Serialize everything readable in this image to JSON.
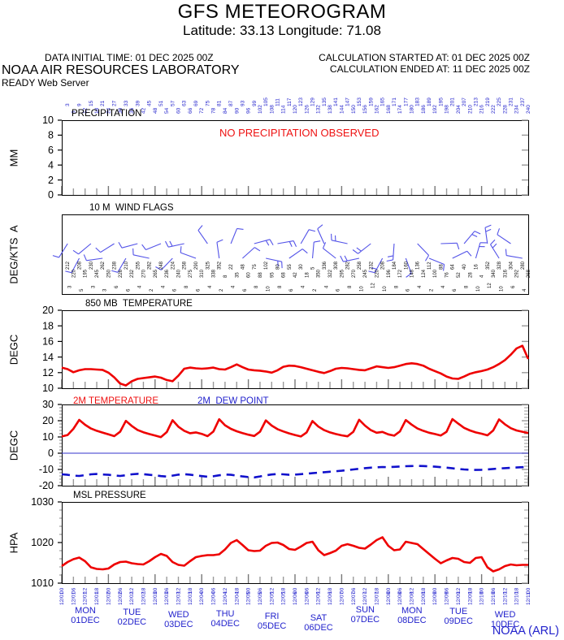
{
  "header": {
    "title": "GFS METEOROGRAM",
    "subtitle": "Latitude: 33.13 Longitude:  71.08",
    "data_initial_time": "DATA INITIAL TIME: 01 DEC 2025 00Z",
    "calc_started": "CALCULATION STARTED AT: 01 DEC 2025 00Z",
    "calc_ended": "CALCULATION ENDED AT: 11 DEC 2025 00Z",
    "org": "NOAA AIR RESOURCES LABORATORY",
    "server": "READY Web Server"
  },
  "footer": {
    "credit": "NOAA (ARL)"
  },
  "colors": {
    "line_red": "#ee0000",
    "text_red": "#ee1111",
    "blue_text": "#2222cc",
    "dew_blue": "#1111cc",
    "barb_blue": "#5353e8",
    "axis_black": "#000000",
    "tick_gray": "#9a9a9a",
    "day_tick_gray": "#777777"
  },
  "x_axis": {
    "x_unit": "forecast hours since 01 DEC 2025 00Z",
    "hours_top": [
      3,
      6,
      9,
      12,
      15,
      18,
      21,
      24,
      27,
      30,
      33,
      36,
      39,
      42,
      45,
      48,
      51,
      54,
      57,
      60,
      63,
      66,
      69,
      72,
      75,
      78,
      81,
      84,
      87,
      90,
      93,
      96,
      99,
      102,
      105,
      108,
      111,
      114,
      117,
      120,
      123,
      126,
      129,
      132,
      135,
      138,
      141,
      144,
      147,
      150,
      153,
      156,
      159,
      162,
      165,
      168,
      171,
      174,
      177,
      180,
      183,
      186,
      189,
      192,
      195,
      198,
      201,
      204,
      207,
      210,
      213,
      216,
      219,
      222,
      225,
      228,
      231,
      234,
      237,
      240
    ],
    "bottom_hours": [
      "00",
      "06",
      "12",
      "18",
      "00",
      "06",
      "12",
      "18",
      "00",
      "06",
      "12",
      "18",
      "00",
      "06",
      "12",
      "18",
      "00",
      "06",
      "12",
      "18",
      "00",
      "06",
      "12",
      "18",
      "00",
      "06",
      "12",
      "18",
      "00",
      "06",
      "12",
      "18",
      "00",
      "06",
      "12",
      "18",
      "00",
      "06",
      "12",
      "18",
      "00"
    ],
    "bottom_dates": [
      "12/01",
      "12/01",
      "12/01",
      "12/01",
      "12/02",
      "12/02",
      "12/02",
      "12/02",
      "12/03",
      "12/03",
      "12/03",
      "12/03",
      "12/04",
      "12/04",
      "12/04",
      "12/04",
      "12/05",
      "12/05",
      "12/05",
      "12/05",
      "12/06",
      "12/06",
      "12/06",
      "12/06",
      "12/07",
      "12/07",
      "12/07",
      "12/07",
      "12/08",
      "12/08",
      "12/08",
      "12/08",
      "12/09",
      "12/09",
      "12/09",
      "12/09",
      "12/10",
      "12/10",
      "12/10",
      "12/10",
      "12/11"
    ],
    "days": [
      {
        "name": "MON",
        "date": "01DEC",
        "dy": 1
      },
      {
        "name": "TUE",
        "date": "02DEC",
        "dy": 3
      },
      {
        "name": "WED",
        "date": "03DEC",
        "dy": 6
      },
      {
        "name": "THU",
        "date": "04DEC",
        "dy": 5
      },
      {
        "name": "FRI",
        "date": "05DEC",
        "dy": 8
      },
      {
        "name": "SAT",
        "date": "06DEC",
        "dy": 10
      },
      {
        "name": "SUN",
        "date": "07DEC",
        "dy": 0
      },
      {
        "name": "MON",
        "date": "08DEC",
        "dy": 1
      },
      {
        "name": "TUE",
        "date": "09DEC",
        "dy": 2
      },
      {
        "name": "WED",
        "date": "10DEC",
        "dy": 6
      }
    ]
  },
  "chart_data": [
    {
      "type": "line",
      "title": "PRECIPITATION",
      "ylabel": "MM",
      "ylim": [
        0,
        10
      ],
      "yticks": [
        0,
        2,
        4,
        6,
        8,
        10
      ],
      "x_start_hour": 0,
      "x_end_hour": 240,
      "x_step_hours": 3,
      "annotation": "NO PRECIPITATION OBSERVED",
      "series": []
    },
    {
      "type": "wind-barbs",
      "title": "10 M  WIND FLAGS",
      "ylabel": "DEG/KTS  A",
      "x_start_hour": 0,
      "x_end_hour": 240,
      "x_step_hours": 3,
      "wind_dir": [
        212,
        220,
        208,
        195,
        230,
        245,
        262,
        250,
        238,
        226,
        210,
        232,
        255,
        270,
        282,
        265,
        248,
        236,
        224,
        240,
        258,
        275,
        290,
        310,
        325,
        338,
        352,
        8,
        22,
        35,
        48,
        60,
        75,
        88,
        102,
        95,
        80,
        68,
        55,
        42,
        30,
        18,
        5,
        350,
        336,
        322,
        308,
        295,
        282,
        270,
        258,
        245,
        232,
        220,
        208,
        196,
        184,
        172,
        160,
        148,
        136,
        124,
        112,
        100,
        88,
        76,
        64,
        52,
        40,
        28,
        16,
        4,
        352,
        340,
        328,
        316,
        304,
        292,
        280,
        268
      ],
      "wind_spd": [
        3,
        4,
        5,
        4,
        3,
        2,
        3,
        5,
        6,
        7,
        6,
        5,
        4,
        3,
        2,
        3,
        4,
        5,
        6,
        7,
        8,
        7,
        6,
        5,
        4,
        3,
        2,
        3,
        4,
        5,
        6,
        7,
        8,
        9,
        10,
        9,
        8,
        7,
        6,
        5,
        4,
        3,
        2,
        3,
        4,
        5,
        6,
        7,
        8,
        9,
        10,
        11,
        12,
        11,
        10,
        9,
        8,
        7,
        6,
        5,
        4,
        3,
        2,
        3,
        4,
        5,
        6,
        7,
        8,
        9,
        10,
        11,
        12,
        11,
        10,
        8,
        6,
        5,
        4,
        3
      ]
    },
    {
      "type": "line",
      "title": "850 MB  TEMPERATURE",
      "ylabel": "DEGC",
      "ylim": [
        10,
        20
      ],
      "yticks": [
        10,
        12,
        14,
        16,
        18,
        20
      ],
      "x_start_hour": 0,
      "x_end_hour": 240,
      "x_step_hours": 3,
      "series": [
        {
          "name": "850 MB TEMPERATURE",
          "color": "#ee0000",
          "style": "solid",
          "values": [
            12.65,
            12.45,
            12.05,
            12.3,
            12.45,
            12.45,
            12.4,
            12.35,
            12.0,
            11.4,
            10.6,
            10.35,
            10.9,
            11.2,
            11.3,
            11.4,
            11.5,
            11.35,
            11.05,
            10.9,
            11.6,
            12.5,
            12.65,
            12.55,
            12.5,
            12.55,
            12.65,
            12.45,
            12.4,
            12.7,
            13.05,
            12.7,
            12.4,
            12.3,
            12.25,
            12.15,
            12.0,
            12.3,
            12.75,
            12.9,
            12.85,
            12.7,
            12.5,
            12.3,
            12.1,
            11.95,
            12.2,
            12.5,
            12.6,
            12.55,
            12.45,
            12.35,
            12.3,
            12.55,
            12.8,
            12.7,
            12.6,
            12.7,
            12.9,
            13.1,
            13.2,
            13.1,
            12.9,
            12.5,
            12.2,
            11.9,
            11.5,
            11.25,
            11.2,
            11.5,
            11.85,
            12.05,
            12.2,
            12.4,
            12.7,
            13.1,
            13.6,
            14.3,
            15.1,
            15.45,
            13.75
          ]
        }
      ]
    },
    {
      "type": "line",
      "ylabel": "DEGC",
      "ylim": [
        -20,
        30
      ],
      "yticks": [
        -20,
        -10,
        0,
        10,
        20,
        30
      ],
      "minor_step": 2,
      "zero_line": true,
      "x_start_hour": 0,
      "x_end_hour": 240,
      "x_step_hours": 3,
      "series": [
        {
          "name": "2M TEMPERATURE",
          "color": "#ee0000",
          "style": "solid",
          "values": [
            10.3,
            11.2,
            15.0,
            20.5,
            17.5,
            15.2,
            13.8,
            12.7,
            11.6,
            10.5,
            13.2,
            19.9,
            16.8,
            14.3,
            12.9,
            11.8,
            10.9,
            9.9,
            13.0,
            20.3,
            16.3,
            13.8,
            12.3,
            12.8,
            11.9,
            10.5,
            13.3,
            20.9,
            17.2,
            15.0,
            13.5,
            12.4,
            11.4,
            10.6,
            13.2,
            20.2,
            17.0,
            14.8,
            13.4,
            12.2,
            11.2,
            10.3,
            12.8,
            19.8,
            16.4,
            14.2,
            12.8,
            11.8,
            11.0,
            10.4,
            13.2,
            20.6,
            17.0,
            14.2,
            12.6,
            13.1,
            11.6,
            10.8,
            13.4,
            20.4,
            17.6,
            15.2,
            13.8,
            12.6,
            11.8,
            10.9,
            13.2,
            21.0,
            18.2,
            15.6,
            14.0,
            12.8,
            12.0,
            11.0,
            14.0,
            20.8,
            17.8,
            15.4,
            14.0,
            13.2,
            12.4
          ]
        },
        {
          "name": "2M  DEW POINT",
          "color": "#1111cc",
          "style": "dashed",
          "values": [
            -13.0,
            -13.3,
            -13.8,
            -14.0,
            -13.5,
            -13.0,
            -12.8,
            -13.1,
            -13.3,
            -13.7,
            -14.0,
            -13.6,
            -13.0,
            -12.7,
            -12.9,
            -13.3,
            -13.6,
            -14.1,
            -14.4,
            -13.8,
            -13.2,
            -12.9,
            -13.2,
            -13.7,
            -14.1,
            -14.5,
            -14.2,
            -13.6,
            -13.1,
            -13.3,
            -13.8,
            -14.3,
            -14.7,
            -14.9,
            -14.3,
            -13.6,
            -13.1,
            -12.8,
            -13.0,
            -13.3,
            -13.2,
            -12.9,
            -12.6,
            -12.3,
            -12.0,
            -11.7,
            -11.4,
            -11.1,
            -10.8,
            -10.4,
            -10.0,
            -9.6,
            -9.2,
            -8.9,
            -8.7,
            -8.5,
            -8.6,
            -8.4,
            -8.2,
            -8.0,
            -7.9,
            -7.8,
            -7.9,
            -8.1,
            -8.3,
            -8.6,
            -8.9,
            -9.3,
            -9.7,
            -10.0,
            -10.2,
            -10.3,
            -10.2,
            -10.0,
            -9.7,
            -9.4,
            -9.2,
            -9.0,
            -8.8,
            -8.6,
            -8.4
          ]
        }
      ]
    },
    {
      "type": "line",
      "title": "MSL PRESSURE",
      "ylabel": "HPA",
      "ylim": [
        1010,
        1030
      ],
      "yticks": [
        1010,
        1020,
        1030
      ],
      "minor_step": 2,
      "x_start_hour": 0,
      "x_end_hour": 240,
      "x_step_hours": 3,
      "series": [
        {
          "name": "MSL PRESSURE",
          "color": "#ee0000",
          "style": "solid",
          "values": [
            1014.2,
            1015.2,
            1015.9,
            1016.3,
            1015.4,
            1013.9,
            1013.5,
            1013.4,
            1013.6,
            1014.6,
            1015.2,
            1015.3,
            1014.9,
            1014.7,
            1014.6,
            1015.4,
            1016.4,
            1017.2,
            1016.7,
            1015.2,
            1014.5,
            1014.3,
            1015.4,
            1016.4,
            1016.7,
            1016.9,
            1016.9,
            1017.1,
            1018.3,
            1019.9,
            1020.6,
            1019.4,
            1018.1,
            1017.9,
            1018.0,
            1019.2,
            1019.9,
            1020.0,
            1019.4,
            1018.4,
            1018.2,
            1019.0,
            1019.9,
            1020.2,
            1018.1,
            1016.9,
            1017.4,
            1018.0,
            1019.2,
            1019.6,
            1019.2,
            1018.7,
            1018.5,
            1019.5,
            1020.6,
            1021.3,
            1019.2,
            1018.1,
            1018.3,
            1020.2,
            1019.9,
            1019.6,
            1018.4,
            1017.2,
            1016.0,
            1014.9,
            1015.6,
            1016.2,
            1016.0,
            1015.2,
            1015.0,
            1016.2,
            1016.4,
            1013.9,
            1012.9,
            1013.4,
            1014.2,
            1014.6,
            1014.4,
            1014.5,
            1014.5
          ]
        }
      ]
    }
  ]
}
